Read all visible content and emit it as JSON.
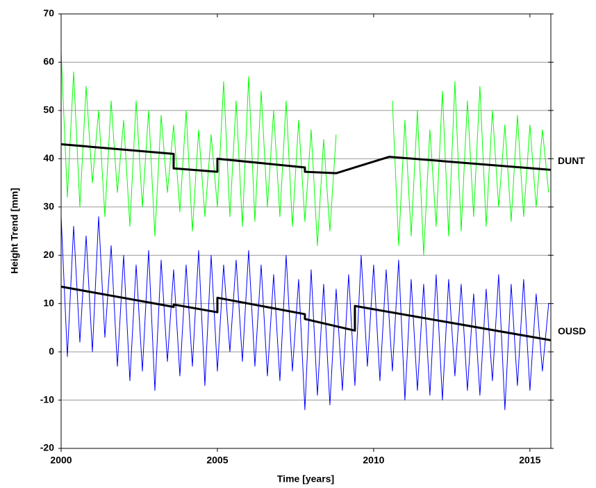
{
  "chart_data": {
    "type": "line",
    "x_label": "Time [years]",
    "y_label": "Height Trend [mm]",
    "xlim": [
      2000,
      2015.67
    ],
    "xticks": [
      2000,
      2005,
      2010,
      2015
    ],
    "ylim": [
      -20,
      70
    ],
    "yticks": [
      -20,
      -10,
      0,
      10,
      20,
      30,
      40,
      50,
      60,
      70
    ],
    "grid": true,
    "x": [
      2000.0,
      2000.2,
      2000.4,
      2000.6,
      2000.8,
      2001.0,
      2001.2,
      2001.4,
      2001.6,
      2001.8,
      2002.0,
      2002.2,
      2002.4,
      2002.6,
      2002.8,
      2003.0,
      2003.2,
      2003.4,
      2003.6,
      2003.8,
      2004.0,
      2004.2,
      2004.4,
      2004.6,
      2004.8,
      2005.0,
      2005.2,
      2005.4,
      2005.6,
      2005.8,
      2006.0,
      2006.2,
      2006.4,
      2006.6,
      2006.8,
      2007.0,
      2007.2,
      2007.4,
      2007.6,
      2007.8,
      2008.0,
      2008.2,
      2008.4,
      2008.6,
      2008.8,
      2009.0,
      2009.2,
      2009.4,
      2009.6,
      2009.8,
      2010.0,
      2010.2,
      2010.4,
      2010.6,
      2010.8,
      2011.0,
      2011.2,
      2011.4,
      2011.6,
      2011.8,
      2012.0,
      2012.2,
      2012.4,
      2012.6,
      2012.8,
      2013.0,
      2013.2,
      2013.4,
      2013.6,
      2013.8,
      2014.0,
      2014.2,
      2014.4,
      2014.6,
      2014.8,
      2015.0,
      2015.2,
      2015.4,
      2015.6
    ],
    "series": [
      {
        "name": "DUNT",
        "color": "#00ff00",
        "values": [
          62,
          32,
          58,
          30,
          55,
          35,
          50,
          28,
          52,
          33,
          48,
          26,
          52,
          30,
          50,
          24,
          49,
          33,
          47,
          29,
          50,
          25,
          46,
          28,
          45,
          30,
          56,
          28,
          52,
          26,
          57,
          27,
          54,
          30,
          50,
          28,
          52,
          26,
          48,
          27,
          46,
          22,
          44,
          25,
          45,
          null,
          null,
          null,
          null,
          null,
          null,
          null,
          null,
          52,
          22,
          48,
          24,
          50,
          20,
          46,
          26,
          54,
          24,
          56,
          25,
          52,
          28,
          55,
          26,
          50,
          30,
          47,
          27,
          49,
          28,
          47,
          30,
          46,
          33
        ]
      },
      {
        "name": "OUSD",
        "color": "#0000ff",
        "values": [
          28,
          -1,
          26,
          2,
          24,
          0,
          28,
          3,
          22,
          -3,
          20,
          -6,
          18,
          -4,
          21,
          -8,
          19,
          -2,
          17,
          -5,
          18,
          -3,
          21,
          -7,
          20,
          -4,
          18,
          0,
          19,
          -2,
          21,
          -3,
          18,
          -5,
          16,
          -6,
          20,
          -4,
          15,
          -12,
          17,
          -9,
          14,
          -11,
          13,
          -8,
          16,
          -7,
          20,
          -3,
          18,
          -6,
          17,
          -4,
          19,
          -10,
          15,
          -8,
          14,
          -9,
          16,
          -10,
          15,
          -5,
          14,
          -8,
          12,
          -9,
          13,
          -6,
          16,
          -12,
          14,
          -7,
          15,
          -8,
          12,
          -4,
          10
        ]
      }
    ],
    "trends": [
      {
        "color": "#000000",
        "x": [
          2000,
          2003.6,
          2003.6,
          2005,
          2005,
          2007.8,
          2007.8,
          2008.8,
          2010.5,
          2015.67
        ],
        "values": [
          43,
          41,
          38,
          37.3,
          40,
          38.2,
          37.3,
          37,
          40.4,
          37.7
        ]
      },
      {
        "color": "#000000",
        "x": [
          2000,
          2003.6,
          2003.6,
          2005,
          2005,
          2007.8,
          2007.8,
          2009.4,
          2009.4,
          2015.67
        ],
        "values": [
          13.5,
          9.3,
          9.8,
          8.2,
          11.2,
          7.8,
          6.8,
          4.4,
          9.5,
          2.4
        ]
      }
    ]
  }
}
